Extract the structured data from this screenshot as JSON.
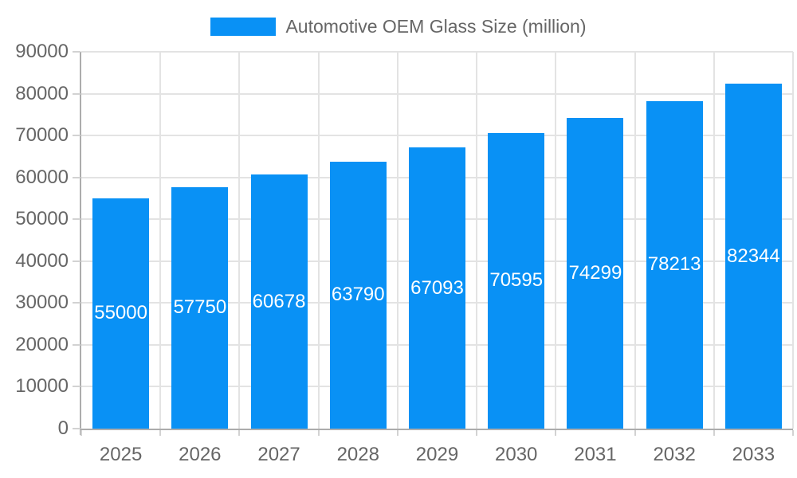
{
  "chart_data": {
    "type": "bar",
    "title": "Automotive OEM Glass Size (million)",
    "categories": [
      "2025",
      "2026",
      "2027",
      "2028",
      "2029",
      "2030",
      "2031",
      "2032",
      "2033"
    ],
    "values": [
      55000,
      57750,
      60678,
      63790,
      67093,
      70595,
      74299,
      78213,
      82344
    ],
    "xlabel": "",
    "ylabel": "",
    "ylim": [
      0,
      90000
    ],
    "yticks": [
      0,
      10000,
      20000,
      30000,
      40000,
      50000,
      60000,
      70000,
      80000,
      90000
    ],
    "grid": true,
    "legend_position": "top",
    "value_label_position": "inside-center",
    "colors": {
      "bar": "#0991f5",
      "grid": "#e3e3e3",
      "axis": "#acacac",
      "tick_mark": "#d2d2d2",
      "tick_text": "#666666",
      "value_label_text": "#ffffff",
      "background": "#ffffff"
    }
  }
}
